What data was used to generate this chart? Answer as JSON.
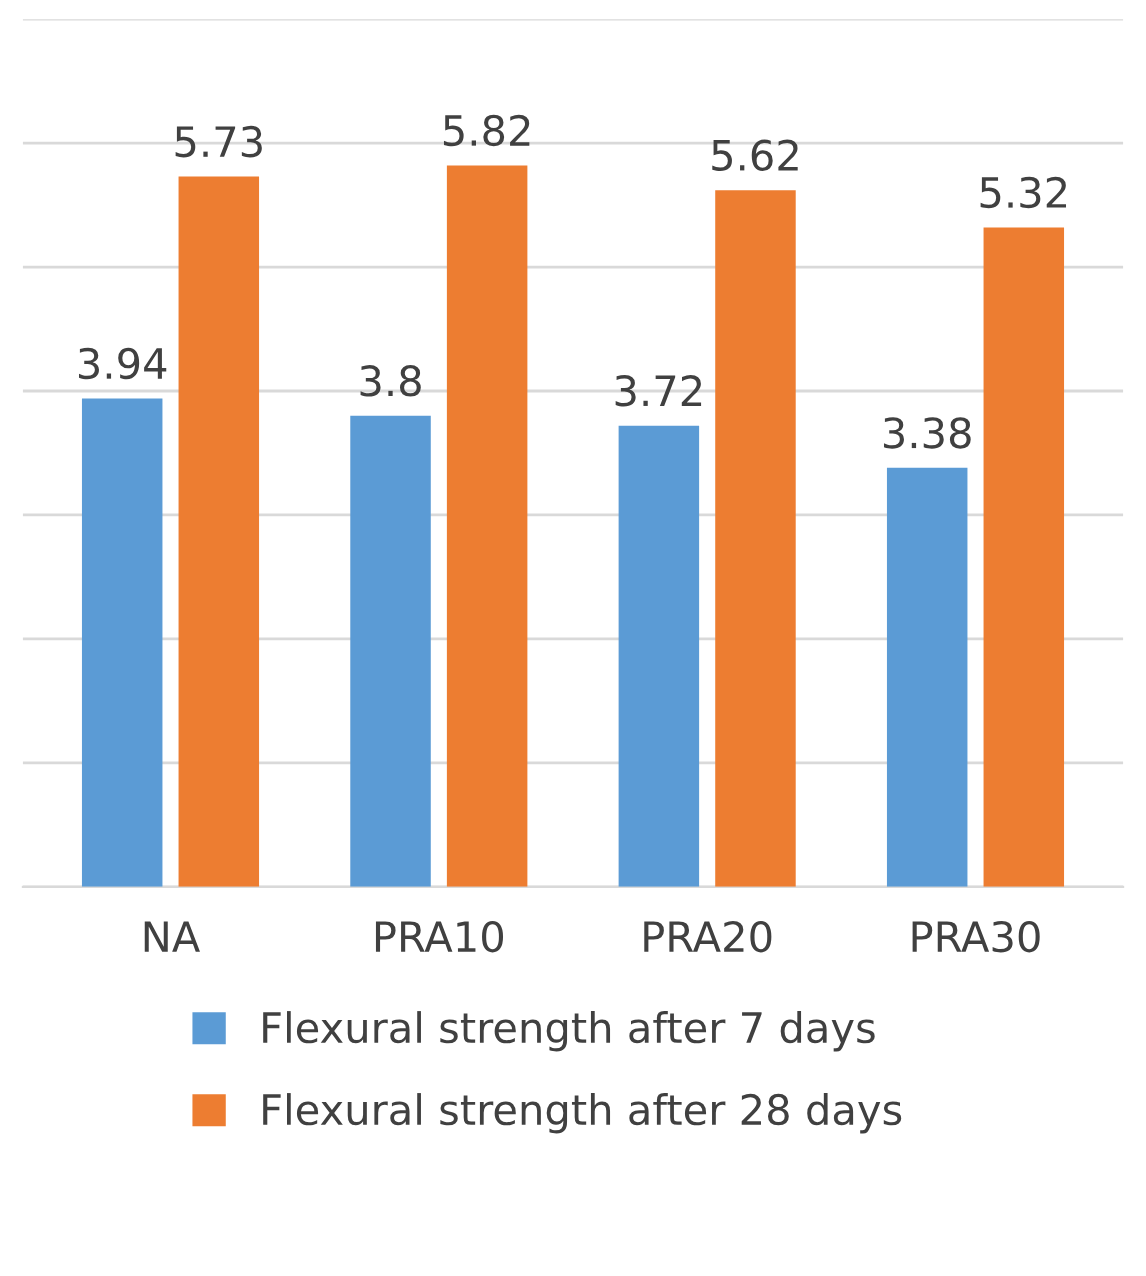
{
  "chart_data": {
    "type": "bar",
    "categories": [
      "NA",
      "PRA10",
      "PRA20",
      "PRA30"
    ],
    "series": [
      {
        "name": "Flexural strength after 7 days",
        "color": "#5b9bd5",
        "values": [
          3.94,
          3.8,
          3.72,
          3.38
        ]
      },
      {
        "name": "Flexural strength after 28 days",
        "color": "#ed7d31",
        "values": [
          5.73,
          5.82,
          5.62,
          5.32
        ]
      }
    ],
    "ylim": [
      0,
      7
    ],
    "yticks": [
      {
        "value": 0,
        "label": null
      },
      {
        "value": 1,
        "label": null
      },
      {
        "value": 2,
        "label": null
      },
      {
        "value": 3,
        "label": null
      },
      {
        "value": 4,
        "label": null
      },
      {
        "value": 5,
        "label": null
      },
      {
        "value": 6,
        "label": null
      },
      {
        "value": 7,
        "label": null
      }
    ],
    "grid": "y",
    "legend": "bottom",
    "data_labels": true,
    "tick_labels": "x"
  }
}
